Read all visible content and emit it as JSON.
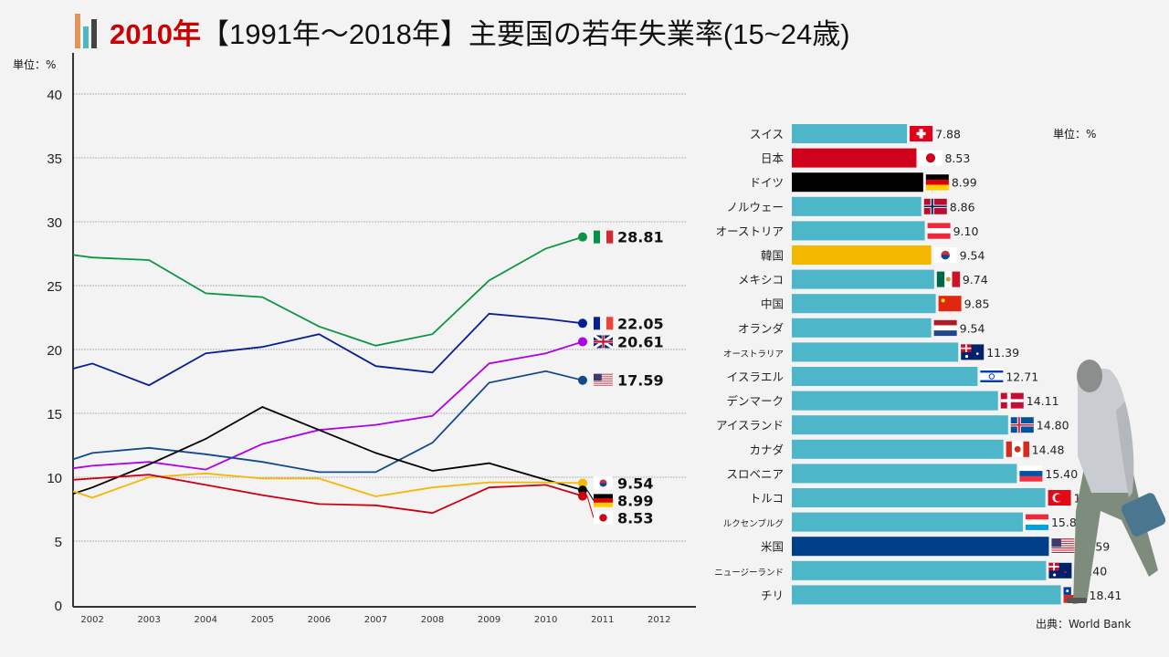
{
  "title": {
    "year": "2010年",
    "rest": "【1991年〜2018年】主要国の若年失業率(15~24歳)"
  },
  "line_unit": "単位：%",
  "bar_unit": "単位：%",
  "source": "出典：World Bank",
  "colors": {
    "bar_default": "#4db6c8",
    "grid": "#b5b5b5",
    "axis": "#333333"
  },
  "chart_data": [
    {
      "type": "line",
      "xlim": [
        2001.66,
        2012.6
      ],
      "ylim": [
        0,
        40
      ],
      "yticks": [
        0,
        5,
        10,
        15,
        20,
        25,
        30,
        35,
        40
      ],
      "xticks": [
        2002,
        2003,
        2004,
        2005,
        2006,
        2007,
        2008,
        2009,
        2010,
        2011,
        2012
      ],
      "grid": true,
      "x": [
        2001.66,
        2002,
        2003,
        2004,
        2005,
        2006,
        2007,
        2008,
        2009,
        2010,
        2010.65
      ],
      "series": [
        {
          "country": "italy",
          "color": "#0b9444",
          "values": [
            27.4,
            27.2,
            27.0,
            24.4,
            24.1,
            21.8,
            20.3,
            21.2,
            25.4,
            27.9,
            28.81
          ],
          "end_label": "28.81"
        },
        {
          "country": "france",
          "color": "#0a1f8f",
          "values": [
            18.5,
            18.9,
            17.2,
            19.7,
            20.2,
            21.2,
            18.7,
            18.2,
            22.8,
            22.4,
            22.05
          ],
          "end_label": "22.05"
        },
        {
          "country": "uk",
          "color": "#b100e8",
          "values": [
            10.7,
            10.9,
            11.2,
            10.6,
            12.6,
            13.7,
            14.1,
            14.8,
            18.9,
            19.7,
            20.61
          ],
          "end_label": "20.61"
        },
        {
          "country": "usa",
          "color": "#124a8c",
          "values": [
            11.4,
            11.9,
            12.3,
            11.8,
            11.2,
            10.4,
            10.4,
            12.7,
            17.4,
            18.3,
            17.59
          ],
          "end_label": "17.59"
        },
        {
          "country": "germany",
          "color": "#000000",
          "values": [
            8.7,
            9.2,
            11.0,
            13.0,
            15.5,
            13.7,
            11.9,
            10.5,
            11.1,
            9.8,
            8.99
          ],
          "end_label": "8.99"
        },
        {
          "country": "korea",
          "color": "#f5b800",
          "values": [
            8.9,
            8.4,
            10.0,
            10.3,
            9.9,
            9.9,
            8.5,
            9.2,
            9.6,
            9.6,
            9.54
          ],
          "end_label": "9.54"
        },
        {
          "country": "japan",
          "color": "#cc0010",
          "values": [
            9.8,
            9.9,
            10.2,
            9.4,
            8.6,
            7.9,
            7.8,
            7.2,
            9.2,
            9.4,
            8.53
          ],
          "end_label": "8.53"
        }
      ]
    },
    {
      "type": "bar",
      "orientation": "horizontal",
      "xlim": [
        0,
        24
      ],
      "bars": [
        {
          "label": "スイス",
          "value": 7.88,
          "flag": "switzerland"
        },
        {
          "label": "日本",
          "value": 8.53,
          "flag": "japan",
          "color": "#d0021b"
        },
        {
          "label": "ドイツ",
          "value": 8.99,
          "flag": "germany",
          "color": "#000000"
        },
        {
          "label": "ノルウェー",
          "value": 8.86,
          "flag": "norway"
        },
        {
          "label": "オーストリア",
          "value": 9.1,
          "flag": "austria"
        },
        {
          "label": "韓国",
          "value": 9.54,
          "flag": "korea",
          "color": "#f5b800"
        },
        {
          "label": "メキシコ",
          "value": 9.74,
          "flag": "mexico"
        },
        {
          "label": "中国",
          "value": 9.85,
          "flag": "china"
        },
        {
          "label": "オランダ",
          "value": 9.54,
          "flag": "netherlands"
        },
        {
          "label": "オーストラリア",
          "value": 11.39,
          "flag": "australia"
        },
        {
          "label": "イスラエル",
          "value": 12.71,
          "flag": "israel"
        },
        {
          "label": "デンマーク",
          "value": 14.11,
          "flag": "denmark"
        },
        {
          "label": "アイスランド",
          "value": 14.8,
          "flag": "iceland"
        },
        {
          "label": "カナダ",
          "value": 14.48,
          "flag": "canada"
        },
        {
          "label": "スロベニア",
          "value": 15.4,
          "flag": "slovenia"
        },
        {
          "label": "トルコ",
          "value": 17.35,
          "flag": "turkey"
        },
        {
          "label": "ルクセンブルグ",
          "value": 15.81,
          "flag": "luxembourg"
        },
        {
          "label": "米国",
          "value": 17.59,
          "flag": "usa",
          "color": "#003f8a"
        },
        {
          "label": "ニュージーランド",
          "value": 17.4,
          "flag": "new-zealand"
        },
        {
          "label": "チリ",
          "value": 18.41,
          "flag": "chile"
        }
      ]
    }
  ]
}
